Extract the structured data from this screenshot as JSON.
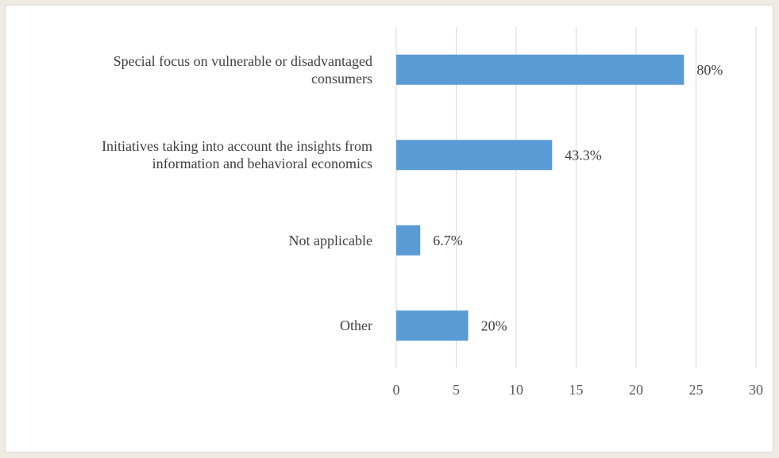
{
  "chart_data": {
    "type": "bar",
    "orientation": "horizontal",
    "categories": [
      [
        "Special focus on vulnerable or disadvantaged",
        "consumers"
      ],
      [
        "Initiatives taking into account the insights from",
        "information and behavioral economics"
      ],
      [
        "Not applicable"
      ],
      [
        "Other"
      ]
    ],
    "values": [
      24,
      13,
      2,
      6
    ],
    "data_labels": [
      "80%",
      "43.3%",
      "6.7%",
      "20%"
    ],
    "xlim": [
      0,
      30
    ],
    "xticks": [
      "0",
      "5",
      "10",
      "15",
      "20",
      "25",
      "30"
    ],
    "xtick_values": [
      0,
      5,
      10,
      15,
      20,
      25,
      30
    ],
    "title": "",
    "xlabel": "",
    "ylabel": "",
    "grid": "vertical",
    "legend": "none",
    "bar_color": "#5b9bd5",
    "grid_color": "#d9d9d9"
  }
}
